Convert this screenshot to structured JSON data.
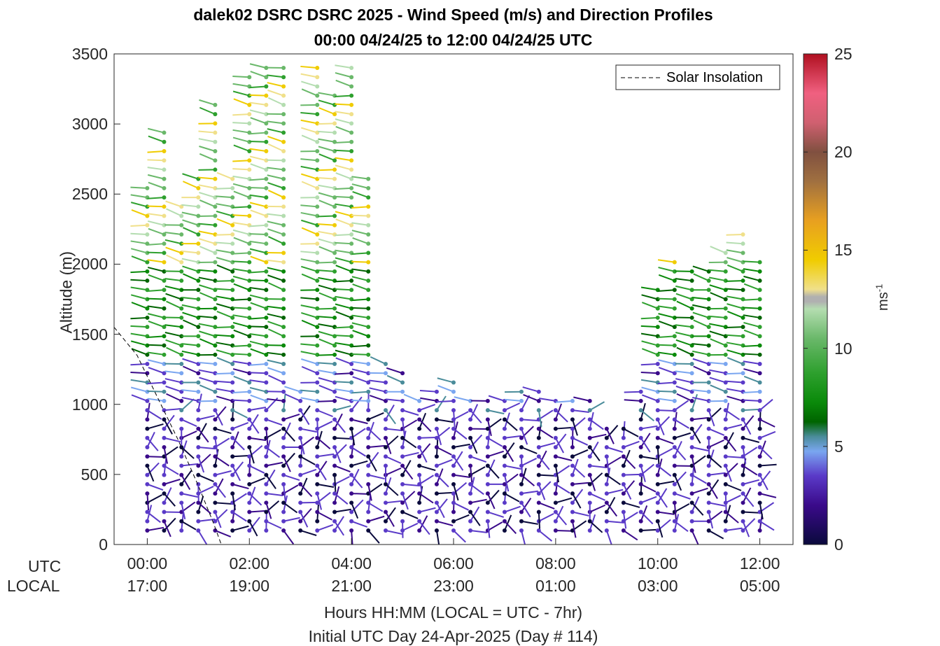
{
  "header": {
    "title_line1": "dalek02 DSRC DSRC 2025 - Wind Speed (m/s) and Direction Profiles",
    "title_line2": "00:00 04/24/25 to 12:00 04/24/25  UTC"
  },
  "chart_data": {
    "type": "wind-barb-profile",
    "title": "dalek02 DSRC DSRC 2025 - Wind Speed (m/s) and Direction Profiles",
    "subtitle": "00:00 04/24/25 to 12:00 04/24/25  UTC",
    "ylabel": "Altitude (m)",
    "xlabel": "Hours HH:MM  (LOCAL = UTC - 7hr)",
    "xlabel2": "Initial UTC Day 24-Apr-2025 (Day # 114)",
    "row_labels": [
      "UTC",
      "LOCAL"
    ],
    "x_ticks_utc": [
      "00:00",
      "02:00",
      "04:00",
      "06:00",
      "08:00",
      "10:00",
      "12:00"
    ],
    "x_ticks_local": [
      "17:00",
      "19:00",
      "21:00",
      "23:00",
      "01:00",
      "03:00",
      "05:00"
    ],
    "xlim_hours": [
      -0.65,
      12.65
    ],
    "ylim": [
      0,
      3500
    ],
    "y_ticks": [
      0,
      500,
      1000,
      1500,
      2000,
      2500,
      3000,
      3500
    ],
    "colorbar": {
      "label": "ms",
      "label_exponent": "-1",
      "range": [
        0,
        25
      ],
      "ticks": [
        0,
        5,
        10,
        15,
        20,
        25
      ]
    },
    "legend": {
      "entries": [
        "Solar Insolation"
      ],
      "placement": "top-right"
    },
    "profile_times_hours": [
      0,
      0.33,
      0.67,
      1.0,
      1.33,
      1.67,
      2.0,
      2.33,
      2.67,
      3.0,
      3.33,
      3.67,
      4.0,
      4.33,
      4.67,
      5.0,
      5.33,
      5.67,
      6.0,
      6.33,
      6.67,
      7.0,
      7.33,
      7.67,
      8.0,
      8.33,
      8.67,
      9.0,
      9.33,
      9.67,
      10.0,
      10.33,
      10.67,
      11.0,
      11.33,
      11.67,
      12.0
    ],
    "profile_tops_m": [
      2550,
      2950,
      2450,
      2650,
      3150,
      2650,
      3350,
      3450,
      3450,
      1150,
      3450,
      3250,
      3450,
      2650,
      1330,
      1250,
      1050,
      1150,
      1200,
      1080,
      1050,
      1050,
      1100,
      1100,
      1050,
      1050,
      1050,
      850,
      850,
      1100,
      1820,
      2050,
      2000,
      2000,
      2080,
      2250,
      2050
    ],
    "solar_insolation": {
      "name": "Solar Insolation",
      "x": [
        -0.65,
        -0.2,
        0.2,
        0.6,
        1.0,
        1.3,
        1.45,
        12.65
      ],
      "y": [
        1550,
        1350,
        1050,
        750,
        420,
        150,
        0,
        0
      ]
    }
  }
}
